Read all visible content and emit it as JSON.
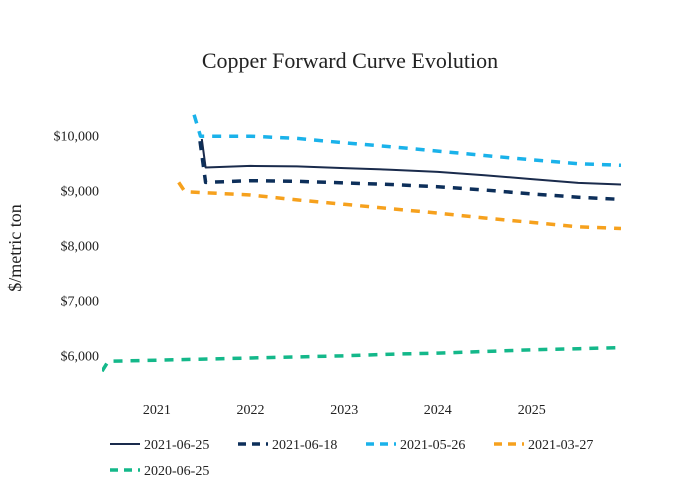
{
  "chart_data": {
    "type": "line",
    "title": "Copper Forward Curve Evolution",
    "xlabel": "",
    "ylabel": "$/metric ton",
    "x_range": [
      "2020-06-01",
      "2025-12-15"
    ],
    "ylim": [
      5550,
      10650
    ],
    "x_ticks": [
      {
        "date": "2021-01-01",
        "label": "2021"
      },
      {
        "date": "2022-01-01",
        "label": "2022"
      },
      {
        "date": "2023-01-01",
        "label": "2023"
      },
      {
        "date": "2024-01-01",
        "label": "2024"
      },
      {
        "date": "2025-01-01",
        "label": "2025"
      }
    ],
    "y_ticks": [
      {
        "value": 6000,
        "label": "$6,000"
      },
      {
        "value": 7000,
        "label": "$7,000"
      },
      {
        "value": 8000,
        "label": "$8,000"
      },
      {
        "value": 9000,
        "label": "$9,000"
      },
      {
        "value": 10000,
        "label": "$10,000"
      }
    ],
    "grid": false,
    "legend_position": "bottom",
    "series": [
      {
        "name": "2021-06-25",
        "color": "#1a2b4c",
        "dash": "solid",
        "points": [
          [
            "2021-06-25",
            9940
          ],
          [
            "2021-07-10",
            9420
          ],
          [
            "2022-01-01",
            9450
          ],
          [
            "2022-07-01",
            9440
          ],
          [
            "2023-01-01",
            9410
          ],
          [
            "2023-07-01",
            9380
          ],
          [
            "2024-01-01",
            9340
          ],
          [
            "2024-07-01",
            9280
          ],
          [
            "2025-01-01",
            9210
          ],
          [
            "2025-07-01",
            9140
          ],
          [
            "2025-12-15",
            9110
          ]
        ]
      },
      {
        "name": "2021-06-18",
        "color": "#0d2f5a",
        "dash": "dash",
        "points": [
          [
            "2021-06-18",
            9900
          ],
          [
            "2021-07-10",
            9150
          ],
          [
            "2022-01-01",
            9180
          ],
          [
            "2022-07-01",
            9170
          ],
          [
            "2023-01-01",
            9140
          ],
          [
            "2023-07-01",
            9110
          ],
          [
            "2024-01-01",
            9070
          ],
          [
            "2024-07-01",
            9010
          ],
          [
            "2025-01-01",
            8940
          ],
          [
            "2025-07-01",
            8880
          ],
          [
            "2025-12-15",
            8840
          ]
        ]
      },
      {
        "name": "2021-05-26",
        "color": "#1ab2ea",
        "dash": "dash",
        "points": [
          [
            "2021-05-26",
            10380
          ],
          [
            "2021-06-20",
            9990
          ],
          [
            "2022-01-01",
            9990
          ],
          [
            "2022-07-01",
            9950
          ],
          [
            "2023-01-01",
            9870
          ],
          [
            "2023-07-01",
            9800
          ],
          [
            "2024-01-01",
            9720
          ],
          [
            "2024-07-01",
            9640
          ],
          [
            "2025-01-01",
            9560
          ],
          [
            "2025-07-01",
            9490
          ],
          [
            "2025-12-15",
            9460
          ]
        ]
      },
      {
        "name": "2021-03-27",
        "color": "#f6a11d",
        "dash": "dash",
        "points": [
          [
            "2021-03-27",
            9150
          ],
          [
            "2021-04-20",
            8980
          ],
          [
            "2022-01-01",
            8920
          ],
          [
            "2022-07-01",
            8830
          ],
          [
            "2023-01-01",
            8750
          ],
          [
            "2023-07-01",
            8670
          ],
          [
            "2024-01-01",
            8590
          ],
          [
            "2024-07-01",
            8500
          ],
          [
            "2025-01-01",
            8420
          ],
          [
            "2025-07-01",
            8340
          ],
          [
            "2025-12-15",
            8310
          ]
        ]
      },
      {
        "name": "2020-06-25",
        "color": "#14b88a",
        "dash": "dash",
        "points": [
          [
            "2020-06-01",
            5710
          ],
          [
            "2020-06-25",
            5890
          ],
          [
            "2021-01-01",
            5910
          ],
          [
            "2021-07-01",
            5930
          ],
          [
            "2022-01-01",
            5950
          ],
          [
            "2022-07-01",
            5970
          ],
          [
            "2023-01-01",
            5990
          ],
          [
            "2023-07-01",
            6020
          ],
          [
            "2024-01-01",
            6040
          ],
          [
            "2024-07-01",
            6070
          ],
          [
            "2025-01-01",
            6100
          ],
          [
            "2025-07-01",
            6120
          ],
          [
            "2025-12-15",
            6140
          ]
        ]
      }
    ]
  }
}
